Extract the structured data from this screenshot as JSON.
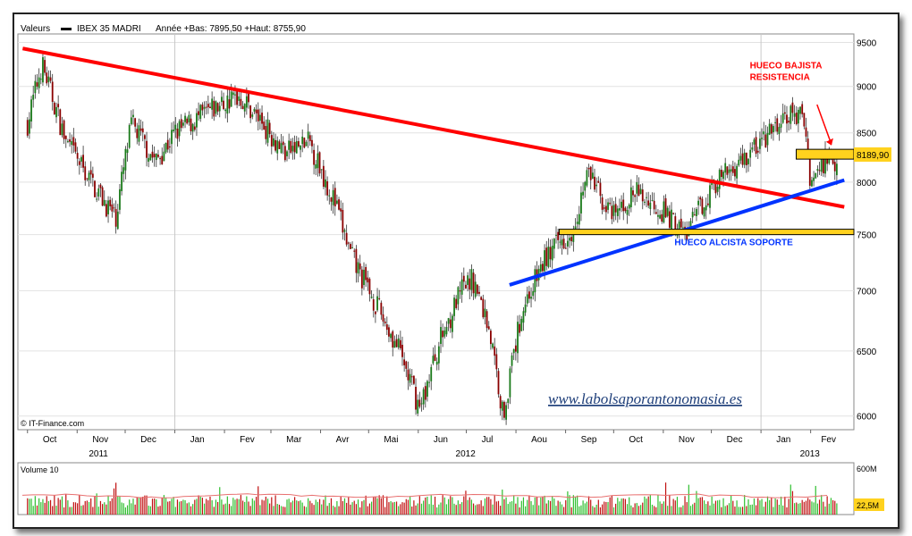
{
  "header": {
    "label": "Valeurs",
    "instrument": "IBEX 35 MADRI",
    "period_info": "Année +Bas: 7895,50 +Haut: 8755,90"
  },
  "credit": "© IT-Finance.com",
  "watermark": "www.labolsaporantonomasia.es",
  "chart_data": {
    "type": "candlestick",
    "title": "IBEX 35 MADRI",
    "y_axis": {
      "ticks": [
        6000,
        6500,
        7000,
        7500,
        8000,
        8500,
        9000,
        9500
      ],
      "range": [
        5900,
        9600
      ],
      "side": "right",
      "scale": "log"
    },
    "x_axis": {
      "months": [
        "Oct",
        "Nov",
        "Dec",
        "Jan",
        "Fev",
        "Mar",
        "Avr",
        "Mai",
        "Jun",
        "Jul",
        "Aou",
        "Sep",
        "Oct",
        "Nov",
        "Dec",
        "Jan",
        "Fev"
      ],
      "years": [
        "2011",
        "2012",
        "2013"
      ]
    },
    "last_price_label": "8189,90",
    "price_path": [
      {
        "date": "2011-10-01",
        "close": 8600
      },
      {
        "date": "2011-10-10",
        "close": 9250
      },
      {
        "date": "2011-10-25",
        "close": 8400
      },
      {
        "date": "2011-11-10",
        "close": 8000
      },
      {
        "date": "2011-11-25",
        "close": 7650
      },
      {
        "date": "2011-12-05",
        "close": 8600
      },
      {
        "date": "2011-12-20",
        "close": 8200
      },
      {
        "date": "2012-01-01",
        "close": 8500
      },
      {
        "date": "2012-01-20",
        "close": 8700
      },
      {
        "date": "2012-02-10",
        "close": 8900
      },
      {
        "date": "2012-02-25",
        "close": 8600
      },
      {
        "date": "2012-03-10",
        "close": 8300
      },
      {
        "date": "2012-03-25",
        "close": 8400
      },
      {
        "date": "2012-04-10",
        "close": 7800
      },
      {
        "date": "2012-04-20",
        "close": 7300
      },
      {
        "date": "2012-05-05",
        "close": 6900
      },
      {
        "date": "2012-05-20",
        "close": 6500
      },
      {
        "date": "2012-06-02",
        "close": 6050
      },
      {
        "date": "2012-06-15",
        "close": 6600
      },
      {
        "date": "2012-06-28",
        "close": 7000
      },
      {
        "date": "2012-07-05",
        "close": 7100
      },
      {
        "date": "2012-07-15",
        "close": 6700
      },
      {
        "date": "2012-07-24",
        "close": 6000
      },
      {
        "date": "2012-08-05",
        "close": 6850
      },
      {
        "date": "2012-08-20",
        "close": 7300
      },
      {
        "date": "2012-09-05",
        "close": 7550
      },
      {
        "date": "2012-09-15",
        "close": 8100
      },
      {
        "date": "2012-09-30",
        "close": 7650
      },
      {
        "date": "2012-10-15",
        "close": 7900
      },
      {
        "date": "2012-10-30",
        "close": 7750
      },
      {
        "date": "2012-11-15",
        "close": 7500
      },
      {
        "date": "2012-12-01",
        "close": 7950
      },
      {
        "date": "2012-12-15",
        "close": 8150
      },
      {
        "date": "2013-01-01",
        "close": 8400
      },
      {
        "date": "2013-01-20",
        "close": 8700
      },
      {
        "date": "2013-01-28",
        "close": 8650
      },
      {
        "date": "2013-02-01",
        "close": 8000
      },
      {
        "date": "2013-02-12",
        "close": 8280
      },
      {
        "date": "2013-02-18",
        "close": 8190
      }
    ],
    "volume": {
      "label": "Volume 10",
      "ticks": [
        "600M",
        "22,5M"
      ]
    },
    "annotations": [
      {
        "type": "trendline",
        "color": "#ff0000",
        "from": {
          "date": "2011-09-28",
          "value": 9430
        },
        "to": {
          "date": "2013-02-22",
          "value": 7760
        }
      },
      {
        "type": "trendline",
        "color": "#0033ff",
        "from": {
          "date": "2012-07-28",
          "value": 7050
        },
        "to": {
          "date": "2013-02-22",
          "value": 8020
        }
      },
      {
        "type": "zone",
        "color": "#ffd21e",
        "range": [
          7500,
          7550
        ],
        "label": "HUECO ALCISTA SOPORTE",
        "label_color": "#0033ff"
      },
      {
        "type": "zone",
        "color": "#ffd21e",
        "range": [
          8230,
          8330
        ],
        "label": "HUECO BAJISTA\nRESISTENCIA",
        "label_color": "#ff0000"
      }
    ]
  }
}
